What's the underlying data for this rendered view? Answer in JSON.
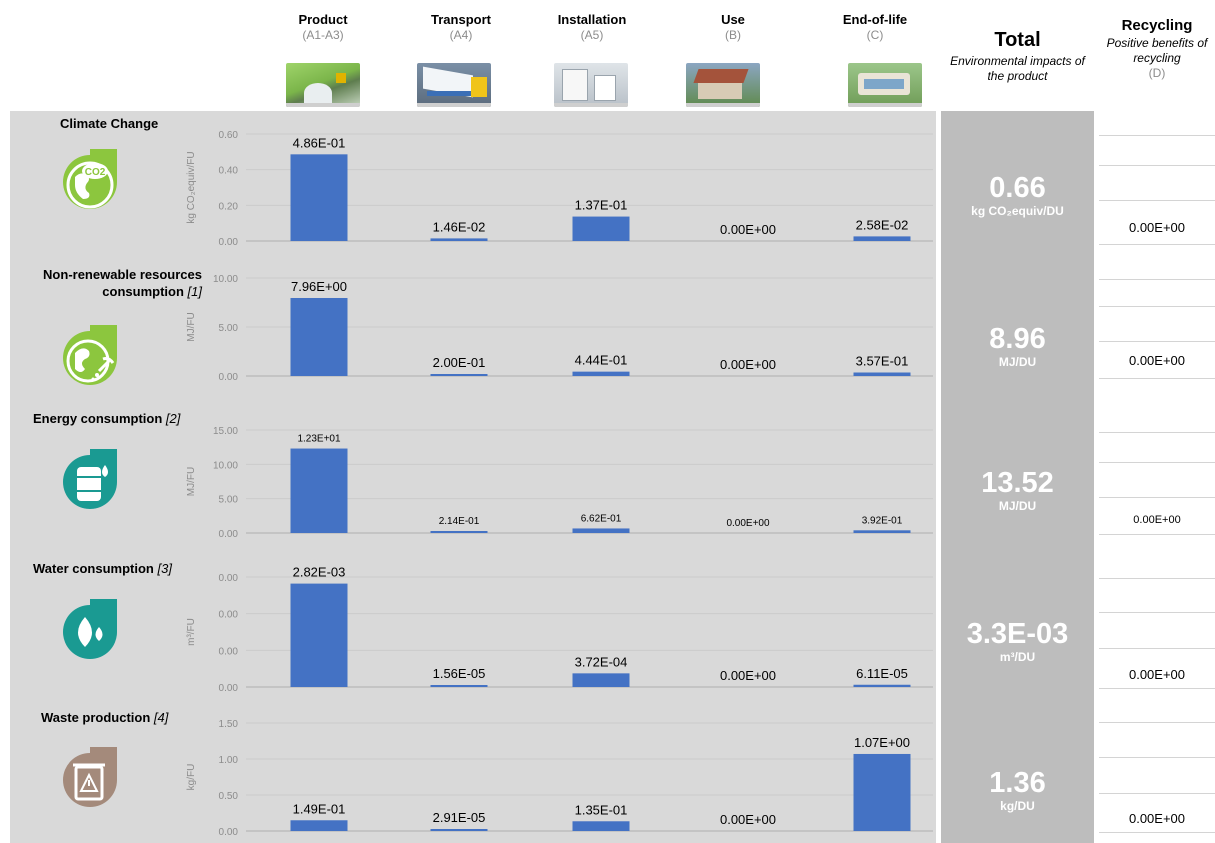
{
  "stages": [
    {
      "name": "Product",
      "code": "(A1-A3)",
      "image_icon": "product-thumbnail"
    },
    {
      "name": "Transport",
      "code": "(A4)",
      "image_icon": "transport-truck-thumbnail"
    },
    {
      "name": "Installation",
      "code": "(A5)",
      "image_icon": "installation-thumbnail"
    },
    {
      "name": "Use",
      "code": "(B)",
      "image_icon": "house-thumbnail"
    },
    {
      "name": "End-of-life",
      "code": "(C)",
      "image_icon": "end-of-life-thumbnail"
    }
  ],
  "total_header": {
    "title": "Total",
    "subtitle": "Environmental impacts of the product"
  },
  "recycling_header": {
    "title": "Recycling",
    "subtitle": "Positive benefits of recycling",
    "code": "(D)"
  },
  "colors": {
    "bar": "#4472c4",
    "panel": "#d9d9d9",
    "total_column": "#bdbdbd",
    "climate_icon": "#8cc63e",
    "energy_icon": "#1a9a92",
    "waste_icon": "#a48a7b"
  },
  "chart_data": [
    {
      "type": "bar",
      "indicator": "Climate Change",
      "note": "",
      "icon": "co2-earth-icon",
      "ylabel": "kg CO₂equiv/FU",
      "ylim": [
        0,
        0.6
      ],
      "yticks": [
        "0.00",
        "0.20",
        "0.40",
        "0.60"
      ],
      "categories": [
        "Product",
        "Transport",
        "Installation",
        "Use",
        "End-of-life"
      ],
      "values": [
        0.486,
        0.0146,
        0.137,
        0.0,
        0.0258
      ],
      "data_labels": [
        "4.86E-01",
        "1.46E-02",
        "1.37E-01",
        "0.00E+00",
        "2.58E-02"
      ],
      "total": "0.66",
      "total_unit": "kg CO₂equiv/DU",
      "recycling": "0.00E+00"
    },
    {
      "type": "bar",
      "indicator": "Non-renewable resources consumption",
      "note": "[1]",
      "icon": "earth-pickaxe-icon",
      "ylabel": "MJ/FU",
      "ylim": [
        0,
        10
      ],
      "yticks": [
        "0.00",
        "5.00",
        "10.00"
      ],
      "categories": [
        "Product",
        "Transport",
        "Installation",
        "Use",
        "End-of-life"
      ],
      "values": [
        7.96,
        0.2,
        0.444,
        0.0,
        0.357
      ],
      "data_labels": [
        "7.96E+00",
        "2.00E-01",
        "4.44E-01",
        "0.00E+00",
        "3.57E-01"
      ],
      "total": "8.96",
      "total_unit": "MJ/DU",
      "recycling": "0.00E+00"
    },
    {
      "type": "bar",
      "indicator": "Energy consumption",
      "note": "[2]",
      "icon": "oil-barrel-icon",
      "ylabel": "MJ/FU",
      "ylim": [
        0,
        15
      ],
      "yticks": [
        "0.00",
        "5.00",
        "10.00",
        "15.00"
      ],
      "categories": [
        "Product",
        "Transport",
        "Installation",
        "Use",
        "End-of-life"
      ],
      "values": [
        12.3,
        0.214,
        0.662,
        0.0,
        0.392
      ],
      "data_labels": [
        "1.23E+01",
        "2.14E-01",
        "6.62E-01",
        "0.00E+00",
        "3.92E-01"
      ],
      "total": "13.52",
      "total_unit": "MJ/DU",
      "recycling": "0.00E+00"
    },
    {
      "type": "bar",
      "indicator": "Water consumption",
      "note": "[3]",
      "icon": "water-drops-icon",
      "ylabel": "m³/FU",
      "ylim": [
        0,
        0.003
      ],
      "yticks": [
        "0.00",
        "0.00",
        "0.00",
        "0.00"
      ],
      "categories": [
        "Product",
        "Transport",
        "Installation",
        "Use",
        "End-of-life"
      ],
      "values": [
        0.00282,
        1.56e-05,
        0.000372,
        0.0,
        6.11e-05
      ],
      "data_labels": [
        "2.82E-03",
        "1.56E-05",
        "3.72E-04",
        "0.00E+00",
        "6.11E-05"
      ],
      "total": "3.3E-03",
      "total_unit": "m³/DU",
      "recycling": "0.00E+00"
    },
    {
      "type": "bar",
      "indicator": "Waste production",
      "note": "[4]",
      "icon": "waste-bin-warning-icon",
      "ylabel": "kg/FU",
      "ylim": [
        0,
        1.5
      ],
      "yticks": [
        "0.00",
        "0.50",
        "1.00",
        "1.50"
      ],
      "categories": [
        "Product",
        "Transport",
        "Installation",
        "Use",
        "End-of-life"
      ],
      "values": [
        0.149,
        2.91e-05,
        0.135,
        0.0,
        1.07
      ],
      "data_labels": [
        "1.49E-01",
        "2.91E-05",
        "1.35E-01",
        "0.00E+00",
        "1.07E+00"
      ],
      "total": "1.36",
      "total_unit": "kg/DU",
      "recycling": "0.00E+00"
    }
  ]
}
